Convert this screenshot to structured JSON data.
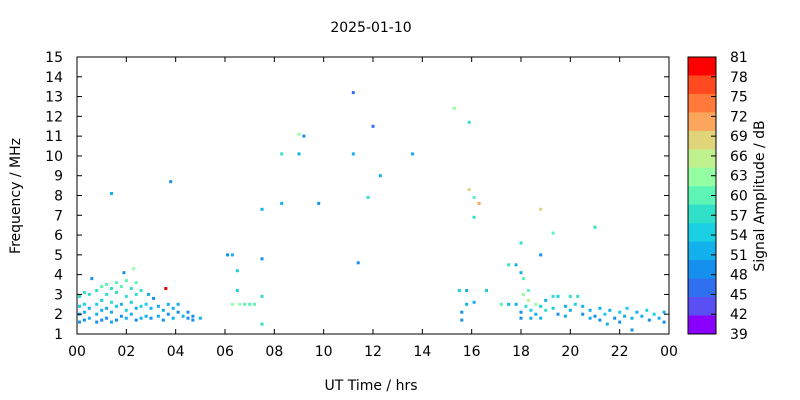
{
  "chart_data": {
    "type": "scatter",
    "title": "2025-01-10",
    "xlabel": "UT Time / hrs",
    "ylabel": "Frequency / MHz",
    "colorbar_label": "Signal Amplitude / dB",
    "xlim": [
      0,
      24
    ],
    "ylim": [
      1,
      15
    ],
    "xtick_labels": [
      "00",
      "02",
      "04",
      "06",
      "08",
      "10",
      "12",
      "14",
      "16",
      "18",
      "20",
      "22",
      "00"
    ],
    "ytick_labels": [
      "1",
      "2",
      "3",
      "4",
      "5",
      "6",
      "7",
      "8",
      "9",
      "10",
      "11",
      "12",
      "13",
      "14",
      "15"
    ],
    "colorbar_ticks": [
      "81",
      "78",
      "75",
      "72",
      "69",
      "66",
      "63",
      "60",
      "57",
      "54",
      "51",
      "48",
      "45",
      "42",
      "39"
    ],
    "colorbar_colors": [
      "#ff0000",
      "#ff4a1f",
      "#ff7a3a",
      "#fca55c",
      "#e0d47a",
      "#bff28f",
      "#94ffa2",
      "#5cf5b5",
      "#30e0c8",
      "#1ad0e2",
      "#12b0ec",
      "#1690ee",
      "#3070f0",
      "#5a4ff2",
      "#8a00ff"
    ],
    "grid": false,
    "points": [
      {
        "x": 0.1,
        "y": 1.6,
        "v": 50
      },
      {
        "x": 0.1,
        "y": 2.0,
        "v": 52
      },
      {
        "x": 0.1,
        "y": 2.4,
        "v": 54
      },
      {
        "x": 0.1,
        "y": 2.9,
        "v": 56
      },
      {
        "x": 0.3,
        "y": 1.7,
        "v": 49
      },
      {
        "x": 0.3,
        "y": 2.1,
        "v": 53
      },
      {
        "x": 0.3,
        "y": 2.5,
        "v": 55
      },
      {
        "x": 0.3,
        "y": 3.1,
        "v": 57
      },
      {
        "x": 0.5,
        "y": 1.8,
        "v": 51
      },
      {
        "x": 0.5,
        "y": 2.3,
        "v": 52
      },
      {
        "x": 0.5,
        "y": 3.0,
        "v": 56
      },
      {
        "x": 0.6,
        "y": 3.8,
        "v": 50
      },
      {
        "x": 0.8,
        "y": 1.6,
        "v": 48
      },
      {
        "x": 0.8,
        "y": 2.0,
        "v": 51
      },
      {
        "x": 0.8,
        "y": 2.5,
        "v": 54
      },
      {
        "x": 0.8,
        "y": 3.2,
        "v": 58
      },
      {
        "x": 1.0,
        "y": 1.7,
        "v": 50
      },
      {
        "x": 1.0,
        "y": 2.2,
        "v": 52
      },
      {
        "x": 1.0,
        "y": 2.7,
        "v": 55
      },
      {
        "x": 1.0,
        "y": 3.4,
        "v": 59
      },
      {
        "x": 1.2,
        "y": 1.8,
        "v": 49
      },
      {
        "x": 1.2,
        "y": 2.3,
        "v": 53
      },
      {
        "x": 1.2,
        "y": 3.0,
        "v": 57
      },
      {
        "x": 1.2,
        "y": 3.5,
        "v": 60
      },
      {
        "x": 1.4,
        "y": 1.6,
        "v": 51
      },
      {
        "x": 1.4,
        "y": 2.1,
        "v": 52
      },
      {
        "x": 1.4,
        "y": 2.6,
        "v": 56
      },
      {
        "x": 1.4,
        "y": 3.3,
        "v": 58
      },
      {
        "x": 1.6,
        "y": 1.7,
        "v": 50
      },
      {
        "x": 1.6,
        "y": 2.4,
        "v": 54
      },
      {
        "x": 1.6,
        "y": 3.1,
        "v": 57
      },
      {
        "x": 1.6,
        "y": 3.6,
        "v": 61
      },
      {
        "x": 1.8,
        "y": 1.9,
        "v": 49
      },
      {
        "x": 1.8,
        "y": 2.5,
        "v": 53
      },
      {
        "x": 1.8,
        "y": 3.4,
        "v": 59
      },
      {
        "x": 2.0,
        "y": 1.8,
        "v": 52
      },
      {
        "x": 2.0,
        "y": 2.2,
        "v": 54
      },
      {
        "x": 2.0,
        "y": 2.9,
        "v": 57
      },
      {
        "x": 2.0,
        "y": 3.7,
        "v": 60
      },
      {
        "x": 2.2,
        "y": 2.0,
        "v": 51
      },
      {
        "x": 2.2,
        "y": 2.6,
        "v": 55
      },
      {
        "x": 2.2,
        "y": 3.3,
        "v": 58
      },
      {
        "x": 2.3,
        "y": 4.3,
        "v": 62
      },
      {
        "x": 2.4,
        "y": 1.7,
        "v": 50
      },
      {
        "x": 2.4,
        "y": 2.3,
        "v": 53
      },
      {
        "x": 2.4,
        "y": 3.0,
        "v": 57
      },
      {
        "x": 2.4,
        "y": 3.6,
        "v": 60
      },
      {
        "x": 2.6,
        "y": 1.8,
        "v": 52
      },
      {
        "x": 2.6,
        "y": 2.4,
        "v": 54
      },
      {
        "x": 2.6,
        "y": 3.2,
        "v": 58
      },
      {
        "x": 2.8,
        "y": 1.9,
        "v": 51
      },
      {
        "x": 2.8,
        "y": 2.5,
        "v": 55
      },
      {
        "x": 2.9,
        "y": 3.0,
        "v": 52
      },
      {
        "x": 3.0,
        "y": 1.8,
        "v": 50
      },
      {
        "x": 3.0,
        "y": 2.3,
        "v": 53
      },
      {
        "x": 3.1,
        "y": 2.8,
        "v": 48
      },
      {
        "x": 3.3,
        "y": 1.9,
        "v": 51
      },
      {
        "x": 3.3,
        "y": 2.4,
        "v": 52
      },
      {
        "x": 3.5,
        "y": 1.7,
        "v": 49
      },
      {
        "x": 3.5,
        "y": 2.2,
        "v": 52
      },
      {
        "x": 3.6,
        "y": 3.3,
        "v": 81
      },
      {
        "x": 3.7,
        "y": 2.0,
        "v": 50
      },
      {
        "x": 3.7,
        "y": 2.5,
        "v": 53
      },
      {
        "x": 3.9,
        "y": 1.8,
        "v": 51
      },
      {
        "x": 3.9,
        "y": 2.3,
        "v": 52
      },
      {
        "x": 4.1,
        "y": 2.1,
        "v": 50
      },
      {
        "x": 4.1,
        "y": 2.5,
        "v": 52
      },
      {
        "x": 4.3,
        "y": 1.9,
        "v": 51
      },
      {
        "x": 4.5,
        "y": 1.8,
        "v": 49
      },
      {
        "x": 4.5,
        "y": 2.1,
        "v": 48
      },
      {
        "x": 4.7,
        "y": 1.9,
        "v": 50
      },
      {
        "x": 4.7,
        "y": 1.7,
        "v": 49
      },
      {
        "x": 5.0,
        "y": 1.8,
        "v": 51
      },
      {
        "x": 1.4,
        "y": 8.1,
        "v": 53
      },
      {
        "x": 3.8,
        "y": 8.7,
        "v": 49
      },
      {
        "x": 1.9,
        "y": 4.1,
        "v": 48
      },
      {
        "x": 6.1,
        "y": 5.0,
        "v": 50
      },
      {
        "x": 6.3,
        "y": 5.0,
        "v": 51
      },
      {
        "x": 6.3,
        "y": 2.5,
        "v": 63
      },
      {
        "x": 6.5,
        "y": 4.2,
        "v": 55
      },
      {
        "x": 6.5,
        "y": 3.2,
        "v": 54
      },
      {
        "x": 6.6,
        "y": 2.5,
        "v": 62
      },
      {
        "x": 6.8,
        "y": 2.5,
        "v": 61
      },
      {
        "x": 7.0,
        "y": 2.5,
        "v": 60
      },
      {
        "x": 7.2,
        "y": 2.5,
        "v": 61
      },
      {
        "x": 7.5,
        "y": 7.3,
        "v": 52
      },
      {
        "x": 7.5,
        "y": 4.8,
        "v": 50
      },
      {
        "x": 7.5,
        "y": 2.9,
        "v": 58
      },
      {
        "x": 7.5,
        "y": 1.5,
        "v": 57
      },
      {
        "x": 8.3,
        "y": 7.6,
        "v": 53
      },
      {
        "x": 8.3,
        "y": 10.1,
        "v": 56
      },
      {
        "x": 9.0,
        "y": 11.1,
        "v": 62
      },
      {
        "x": 9.0,
        "y": 10.1,
        "v": 52
      },
      {
        "x": 9.2,
        "y": 11.0,
        "v": 49
      },
      {
        "x": 9.8,
        "y": 7.6,
        "v": 50
      },
      {
        "x": 11.2,
        "y": 13.2,
        "v": 45
      },
      {
        "x": 11.2,
        "y": 10.1,
        "v": 53
      },
      {
        "x": 11.4,
        "y": 4.6,
        "v": 49
      },
      {
        "x": 11.8,
        "y": 7.9,
        "v": 58
      },
      {
        "x": 12.0,
        "y": 11.5,
        "v": 47
      },
      {
        "x": 12.3,
        "y": 9.0,
        "v": 51
      },
      {
        "x": 13.6,
        "y": 10.1,
        "v": 52
      },
      {
        "x": 15.3,
        "y": 12.4,
        "v": 64
      },
      {
        "x": 15.5,
        "y": 3.2,
        "v": 55
      },
      {
        "x": 15.6,
        "y": 2.1,
        "v": 50
      },
      {
        "x": 15.6,
        "y": 1.7,
        "v": 48
      },
      {
        "x": 15.8,
        "y": 3.2,
        "v": 53
      },
      {
        "x": 15.8,
        "y": 2.5,
        "v": 52
      },
      {
        "x": 15.9,
        "y": 11.7,
        "v": 56
      },
      {
        "x": 15.9,
        "y": 8.3,
        "v": 69
      },
      {
        "x": 16.1,
        "y": 7.9,
        "v": 60
      },
      {
        "x": 16.1,
        "y": 6.9,
        "v": 57
      },
      {
        "x": 16.1,
        "y": 2.6,
        "v": 51
      },
      {
        "x": 16.3,
        "y": 7.6,
        "v": 70
      },
      {
        "x": 16.6,
        "y": 3.2,
        "v": 54
      },
      {
        "x": 17.2,
        "y": 2.5,
        "v": 60
      },
      {
        "x": 17.5,
        "y": 2.5,
        "v": 52
      },
      {
        "x": 17.5,
        "y": 4.5,
        "v": 57
      },
      {
        "x": 17.8,
        "y": 2.5,
        "v": 53
      },
      {
        "x": 17.8,
        "y": 4.5,
        "v": 51
      },
      {
        "x": 18.0,
        "y": 5.6,
        "v": 58
      },
      {
        "x": 18.0,
        "y": 4.1,
        "v": 52
      },
      {
        "x": 18.0,
        "y": 2.1,
        "v": 50
      },
      {
        "x": 18.0,
        "y": 1.8,
        "v": 49
      },
      {
        "x": 18.1,
        "y": 3.8,
        "v": 60
      },
      {
        "x": 18.1,
        "y": 3.0,
        "v": 62
      },
      {
        "x": 18.2,
        "y": 2.4,
        "v": 56
      },
      {
        "x": 18.3,
        "y": 2.7,
        "v": 66
      },
      {
        "x": 18.3,
        "y": 3.2,
        "v": 61
      },
      {
        "x": 18.4,
        "y": 2.2,
        "v": 54
      },
      {
        "x": 18.4,
        "y": 1.8,
        "v": 52
      },
      {
        "x": 18.6,
        "y": 2.5,
        "v": 64
      },
      {
        "x": 18.6,
        "y": 2.0,
        "v": 53
      },
      {
        "x": 18.8,
        "y": 7.3,
        "v": 69
      },
      {
        "x": 18.8,
        "y": 5.0,
        "v": 50
      },
      {
        "x": 18.8,
        "y": 2.4,
        "v": 55
      },
      {
        "x": 18.8,
        "y": 1.8,
        "v": 51
      },
      {
        "x": 19.0,
        "y": 2.2,
        "v": 57
      },
      {
        "x": 19.0,
        "y": 2.7,
        "v": 52
      },
      {
        "x": 19.3,
        "y": 6.1,
        "v": 59
      },
      {
        "x": 19.3,
        "y": 2.9,
        "v": 58
      },
      {
        "x": 19.3,
        "y": 2.3,
        "v": 54
      },
      {
        "x": 19.5,
        "y": 2.0,
        "v": 50
      },
      {
        "x": 19.5,
        "y": 2.9,
        "v": 55
      },
      {
        "x": 19.8,
        "y": 2.4,
        "v": 53
      },
      {
        "x": 19.8,
        "y": 1.9,
        "v": 51
      },
      {
        "x": 20.0,
        "y": 2.9,
        "v": 56
      },
      {
        "x": 20.0,
        "y": 2.2,
        "v": 52
      },
      {
        "x": 20.2,
        "y": 2.5,
        "v": 54
      },
      {
        "x": 20.3,
        "y": 2.9,
        "v": 57
      },
      {
        "x": 20.5,
        "y": 2.0,
        "v": 50
      },
      {
        "x": 20.5,
        "y": 2.4,
        "v": 53
      },
      {
        "x": 20.8,
        "y": 1.8,
        "v": 51
      },
      {
        "x": 20.8,
        "y": 2.2,
        "v": 52
      },
      {
        "x": 21.0,
        "y": 6.4,
        "v": 57
      },
      {
        "x": 21.0,
        "y": 1.9,
        "v": 50
      },
      {
        "x": 21.2,
        "y": 2.3,
        "v": 53
      },
      {
        "x": 21.2,
        "y": 1.7,
        "v": 49
      },
      {
        "x": 21.4,
        "y": 2.0,
        "v": 54
      },
      {
        "x": 21.5,
        "y": 1.5,
        "v": 52
      },
      {
        "x": 21.6,
        "y": 2.2,
        "v": 51
      },
      {
        "x": 21.8,
        "y": 1.8,
        "v": 50
      },
      {
        "x": 22.0,
        "y": 2.1,
        "v": 55
      },
      {
        "x": 22.0,
        "y": 1.6,
        "v": 49
      },
      {
        "x": 22.2,
        "y": 1.9,
        "v": 52
      },
      {
        "x": 22.3,
        "y": 2.3,
        "v": 54
      },
      {
        "x": 22.5,
        "y": 1.2,
        "v": 50
      },
      {
        "x": 22.5,
        "y": 1.8,
        "v": 51
      },
      {
        "x": 22.7,
        "y": 2.1,
        "v": 53
      },
      {
        "x": 22.9,
        "y": 1.9,
        "v": 52
      },
      {
        "x": 23.1,
        "y": 2.2,
        "v": 55
      },
      {
        "x": 23.2,
        "y": 1.7,
        "v": 50
      },
      {
        "x": 23.4,
        "y": 2.0,
        "v": 54
      },
      {
        "x": 23.6,
        "y": 1.8,
        "v": 51
      },
      {
        "x": 23.8,
        "y": 2.1,
        "v": 53
      },
      {
        "x": 23.8,
        "y": 1.6,
        "v": 49
      }
    ]
  }
}
